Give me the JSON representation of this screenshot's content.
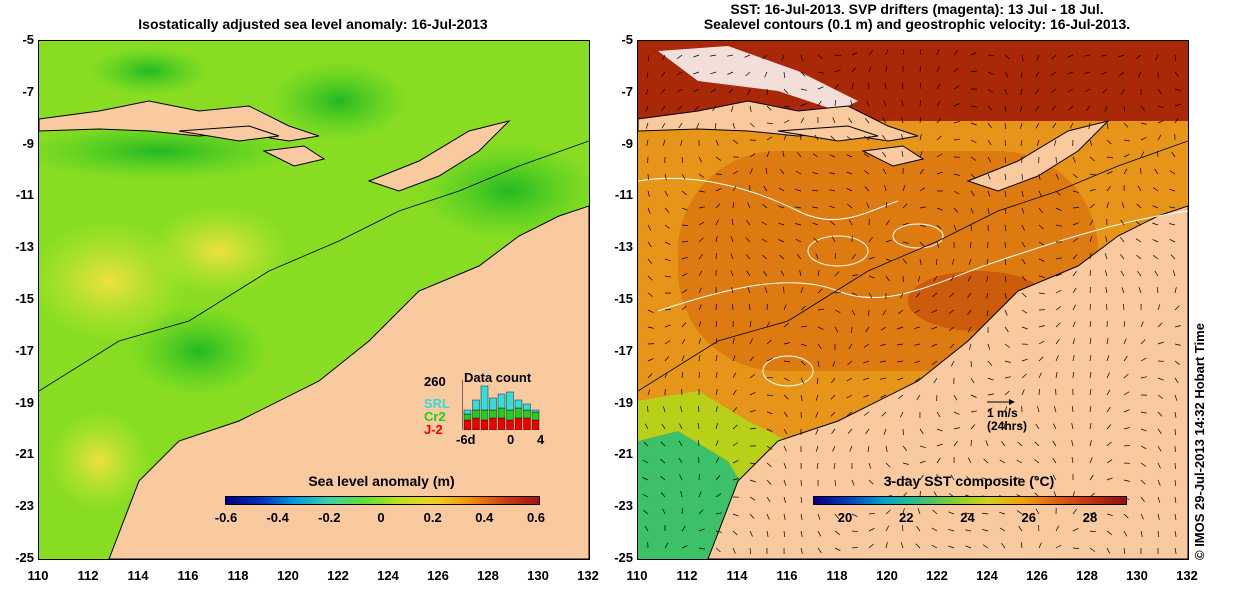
{
  "left_title": "Isostatically adjusted sea level anomaly: 16-Jul-2013",
  "right_title_line1": "SST: 16-Jul-2013. SVP drifters (magenta): 13 Jul - 18 Jul.",
  "right_title_line2": "Sealevel contours (0.1 m) and geostrophic velocity: 16-Jul-2013.",
  "y_ticks": [
    "-5",
    "-7",
    "-9",
    "-11",
    "-13",
    "-15",
    "-17",
    "-19",
    "-21",
    "-23",
    "-25"
  ],
  "x_ticks": [
    "110",
    "112",
    "114",
    "116",
    "118",
    "120",
    "122",
    "124",
    "126",
    "128",
    "130",
    "132"
  ],
  "left_colorbar": {
    "title": "Sea level anomaly (m)",
    "labels": [
      "-0.6",
      "-0.4",
      "-0.2",
      "0",
      "0.2",
      "0.4",
      "0.6"
    ]
  },
  "right_colorbar": {
    "title": "3-day SST composite (°C)",
    "labels": [
      "20",
      "22",
      "24",
      "26",
      "28"
    ]
  },
  "data_count": {
    "title": "Data count",
    "max_label": "260",
    "x_labels": [
      "-6d",
      "0",
      "4"
    ],
    "series": [
      {
        "name": "SRL",
        "color": "#33dddd"
      },
      {
        "name": "Cr2",
        "color": "#22cc22"
      },
      {
        "name": "J-2",
        "color": "#ee0000"
      }
    ]
  },
  "velocity_scale": {
    "line1": "1 m/s",
    "line2": "(24hrs)"
  },
  "credit": "© IMOS 29-Jul-2013 14:32 Hobart Time",
  "colors": {
    "land": "#f9c9a0",
    "ocean_green": "#66dd22",
    "sst_orange": "#e08a10"
  }
}
